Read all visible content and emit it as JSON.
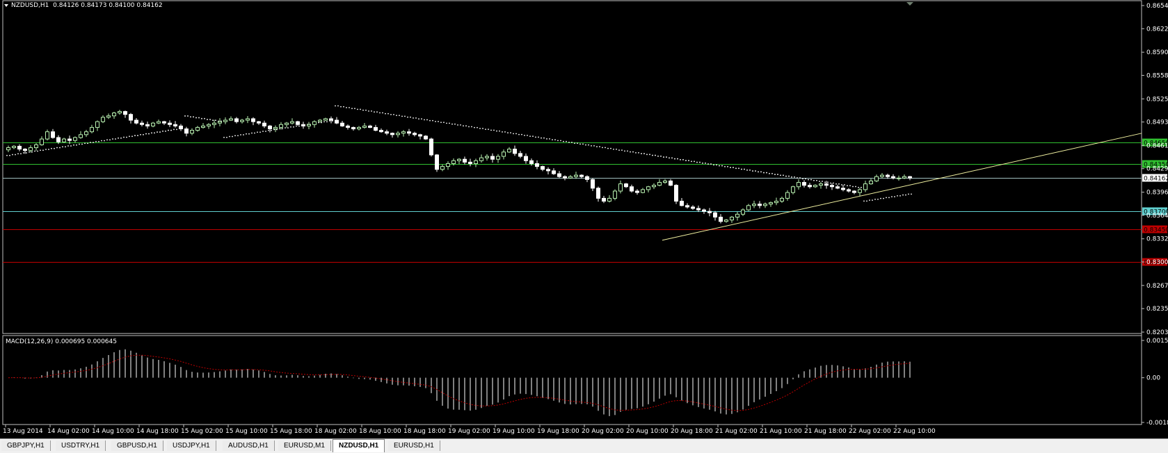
{
  "header": {
    "symbol": "NZDUSD,H1",
    "ohlc": "0.84126 0.84173 0.84100 0.84162"
  },
  "macd_header": {
    "name": "MACD(12,26,9)",
    "values": "0.000695 0.000645"
  },
  "colors": {
    "background": "#000000",
    "grid_border": "#c0c0c0",
    "bull_candle": "#b8f0b0",
    "bear_candle": "#ffffff",
    "sar_dots": "#ffffff",
    "trendline": "#f0f0a0",
    "macd_hist": "#ffffff",
    "macd_signal": "#c00000",
    "level_green": "#30c030",
    "level_cyan": "#80e0e0",
    "level_red": "#c00000"
  },
  "chart_data": [
    {
      "type": "candlestick",
      "title": "NZDUSD,H1",
      "y_ticks": [
        "0.86545",
        "0.86225",
        "0.85900",
        "0.85580",
        "0.85255",
        "0.84935",
        "0.84610",
        "0.84290",
        "0.83965",
        "0.83645",
        "0.83320",
        "0.83000",
        "0.82675",
        "0.82355",
        "0.82030"
      ],
      "ylim": [
        0.8203,
        0.86545
      ],
      "x_ticks": [
        "13 Aug 2014",
        "14 Aug 02:00",
        "14 Aug 10:00",
        "14 Aug 18:00",
        "15 Aug 02:00",
        "15 Aug 10:00",
        "15 Aug 18:00",
        "18 Aug 02:00",
        "18 Aug 10:00",
        "18 Aug 18:00",
        "19 Aug 02:00",
        "19 Aug 10:00",
        "19 Aug 18:00",
        "20 Aug 02:00",
        "20 Aug 10:00",
        "20 Aug 18:00",
        "21 Aug 02:00",
        "21 Aug 10:00",
        "21 Aug 18:00",
        "22 Aug 02:00",
        "22 Aug 10:00"
      ],
      "horizontal_levels": [
        {
          "label": "0.84650",
          "value": 0.8465,
          "color": "#30c030",
          "label_bg": "#30c030",
          "label_fg": "#000000"
        },
        {
          "label": "0.84350",
          "value": 0.8435,
          "color": "#30c030",
          "label_bg": "#30c030",
          "label_fg": "#000000"
        },
        {
          "label": "0.84162",
          "value": 0.84162,
          "color": "#a0c0c0",
          "label_bg": "#ffffff",
          "label_fg": "#000000"
        },
        {
          "label": "0.83700",
          "value": 0.837,
          "color": "#60d0d0",
          "label_bg": "#60d0d0",
          "label_fg": "#000000"
        },
        {
          "label": "0.83450",
          "value": 0.8345,
          "color": "#c00000",
          "label_bg": "#c00000",
          "label_fg": "#000000"
        },
        {
          "label": "0.83000",
          "value": 0.83,
          "color": "#c00000",
          "label_bg": "#c00000",
          "label_fg": "#000000"
        }
      ],
      "trendline": {
        "start": {
          "bar": 118,
          "price": 0.833
        },
        "end": {
          "bar": 203,
          "price": 0.8476
        }
      },
      "closes": [
        0.8458,
        0.846,
        0.8456,
        0.8454,
        0.8458,
        0.8462,
        0.847,
        0.848,
        0.8472,
        0.8466,
        0.847,
        0.8468,
        0.8472,
        0.8476,
        0.848,
        0.8486,
        0.8494,
        0.85,
        0.8502,
        0.8506,
        0.8508,
        0.8504,
        0.8496,
        0.8492,
        0.849,
        0.8488,
        0.8492,
        0.8494,
        0.8492,
        0.849,
        0.8488,
        0.8484,
        0.8478,
        0.8482,
        0.8486,
        0.8488,
        0.849,
        0.8492,
        0.8494,
        0.8496,
        0.8498,
        0.8494,
        0.8496,
        0.8498,
        0.8494,
        0.8492,
        0.8488,
        0.8484,
        0.8486,
        0.849,
        0.8492,
        0.8494,
        0.849,
        0.8488,
        0.849,
        0.8494,
        0.8496,
        0.8498,
        0.8496,
        0.8492,
        0.8488,
        0.8486,
        0.8484,
        0.8486,
        0.8488,
        0.8486,
        0.8482,
        0.848,
        0.8478,
        0.8476,
        0.8478,
        0.848,
        0.8478,
        0.8476,
        0.8474,
        0.847,
        0.8448,
        0.8428,
        0.8432,
        0.8436,
        0.844,
        0.8442,
        0.8438,
        0.8436,
        0.844,
        0.8444,
        0.8446,
        0.8442,
        0.8446,
        0.8452,
        0.8456,
        0.845,
        0.8446,
        0.844,
        0.8436,
        0.8432,
        0.8428,
        0.8426,
        0.8422,
        0.8418,
        0.8416,
        0.8418,
        0.842,
        0.8418,
        0.8414,
        0.8402,
        0.8388,
        0.8384,
        0.8388,
        0.8398,
        0.8408,
        0.8404,
        0.8398,
        0.8396,
        0.84,
        0.8404,
        0.8406,
        0.841,
        0.8412,
        0.8406,
        0.8384,
        0.8378,
        0.8376,
        0.8374,
        0.8372,
        0.837,
        0.8368,
        0.8362,
        0.8356,
        0.8358,
        0.8362,
        0.8366,
        0.8372,
        0.8378,
        0.838,
        0.8378,
        0.838,
        0.8382,
        0.8384,
        0.8388,
        0.8396,
        0.8404,
        0.841,
        0.8406,
        0.8404,
        0.8406,
        0.8408,
        0.8406,
        0.8404,
        0.8402,
        0.84,
        0.8398,
        0.8396,
        0.84,
        0.8408,
        0.8412,
        0.8418,
        0.842,
        0.8418,
        0.8416,
        0.8416,
        0.8418,
        0.8416
      ]
    },
    {
      "type": "bar",
      "title": "MACD(12,26,9)",
      "y_ticks": [
        "0.001543",
        "0.00",
        "-0.00185"
      ],
      "ylim": [
        -0.00185,
        0.001543
      ]
    }
  ],
  "tabs": [
    {
      "label": "GBPJPY,H1",
      "active": false
    },
    {
      "label": "USDTRY,H1",
      "active": false
    },
    {
      "label": "GBPUSD,H1",
      "active": false
    },
    {
      "label": "USDJPY,H1",
      "active": false
    },
    {
      "label": "AUDUSD,H1",
      "active": false
    },
    {
      "label": "EURUSD,M1",
      "active": false
    },
    {
      "label": "NZDUSD,H1",
      "active": true
    },
    {
      "label": "EURUSD,H1",
      "active": false
    }
  ]
}
